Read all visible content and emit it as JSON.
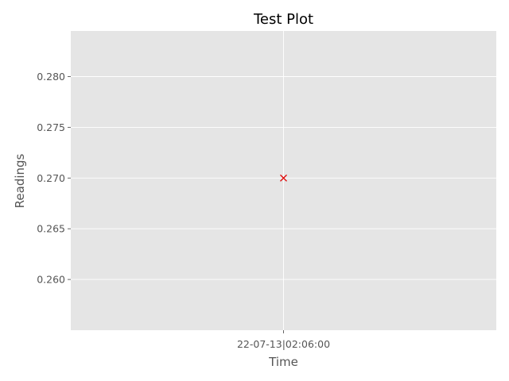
{
  "chart_data": {
    "type": "scatter",
    "title": "Test Plot",
    "xlabel": "Time",
    "ylabel": "Readings",
    "x_ticks": [
      "22-07-13|02:06:00"
    ],
    "y_ticks": [
      0.26,
      0.265,
      0.27,
      0.275,
      0.28
    ],
    "ylim": [
      0.255,
      0.2845
    ],
    "grid": true,
    "series": [
      {
        "marker": "x",
        "color": "#e00000",
        "points": [
          {
            "x": "22-07-13|02:06:00",
            "y": 0.27
          }
        ]
      }
    ],
    "colors": {
      "plot_bg": "#e5e5e5",
      "grid": "#ffffff",
      "text": "#555555"
    }
  }
}
